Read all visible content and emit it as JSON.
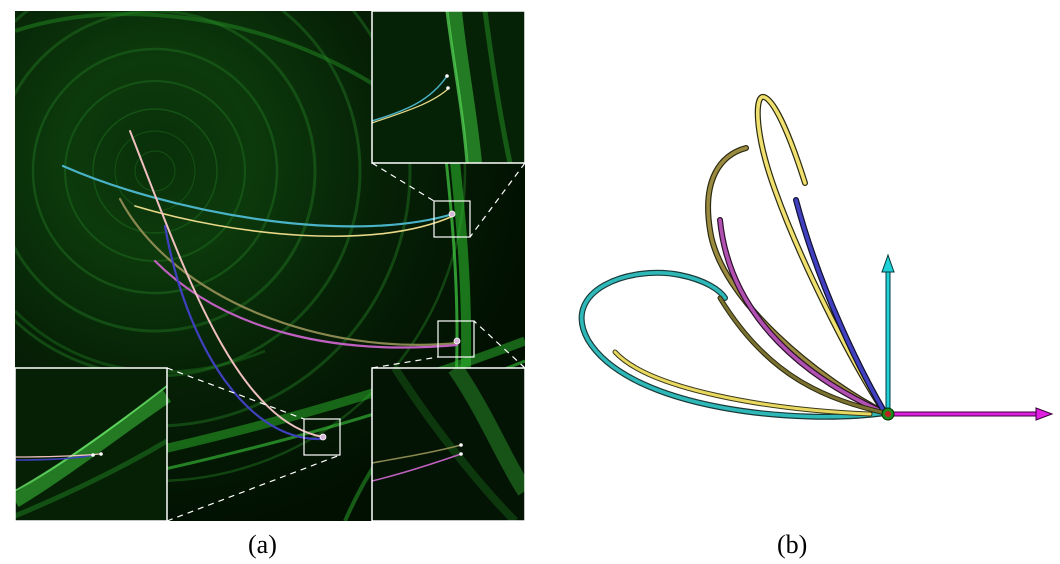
{
  "panels": [
    {
      "id": "a",
      "caption": "(a)"
    },
    {
      "id": "b",
      "caption": "(b)"
    }
  ],
  "colors": {
    "background_dark": "#000000",
    "field_green": "#1fa81f",
    "zoom_frame": "#ffffff",
    "curve_yellow": "#e8d888",
    "curve_cyan": "#4ab3c8",
    "curve_purple": "#c060c0",
    "curve_blue": "#4040c0",
    "curve_olive": "#8a8850",
    "curve_pink": "#f0c0c0",
    "axis_cyan": "#20d0d8",
    "axis_magenta": "#e020e0",
    "origin_green": "#1a8a1a",
    "origin_red": "#c02020"
  }
}
